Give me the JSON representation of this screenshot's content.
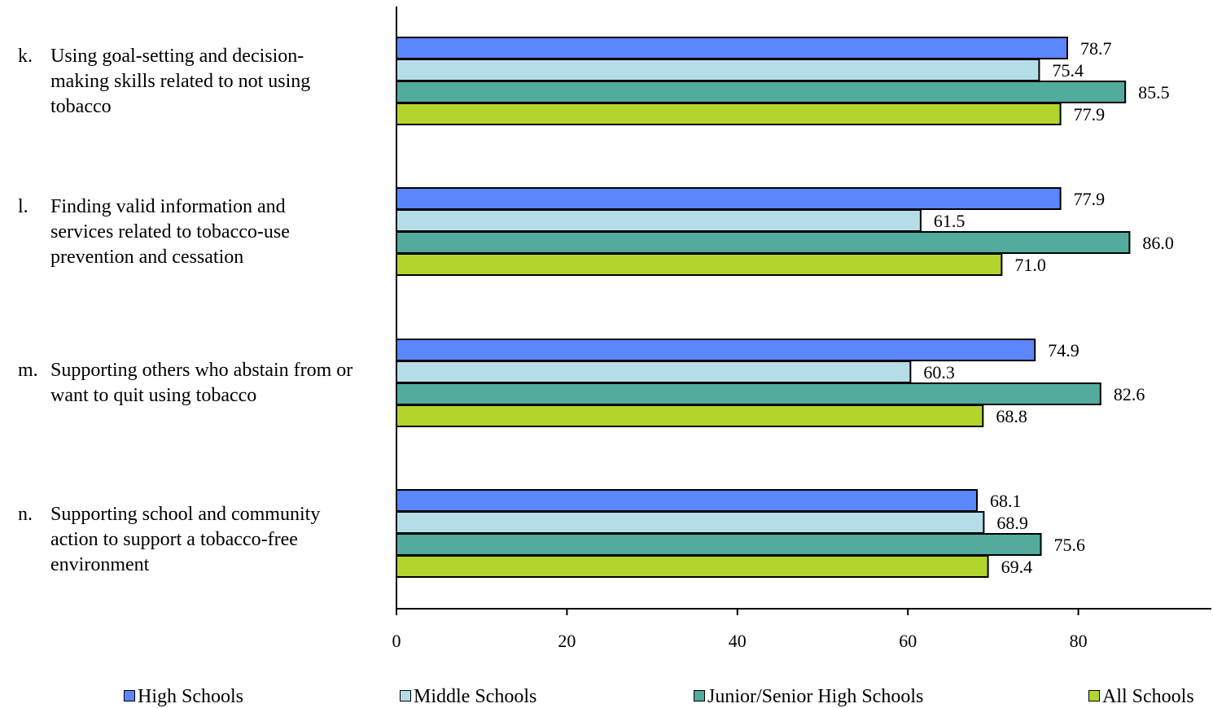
{
  "chart_data": {
    "type": "bar",
    "orientation": "horizontal",
    "categories": [
      {
        "letter": "k.",
        "label": "Using goal-setting and decision-making skills related to not using tobacco",
        "lines": [
          "Using goal-setting and decision-",
          "making skills related to not using",
          "tobacco"
        ]
      },
      {
        "letter": "l.",
        "label": "Finding valid information and services related to tobacco-use prevention and cessation",
        "lines": [
          "Finding valid information and",
          "services related to tobacco-use",
          "prevention and cessation"
        ]
      },
      {
        "letter": "m.",
        "label": "Supporting others who abstain from or want to quit using tobacco",
        "lines": [
          "Supporting others who abstain from or",
          "want to quit using tobacco"
        ]
      },
      {
        "letter": "n.",
        "label": "Supporting school and community action to support a tobacco-free environment",
        "lines": [
          "Supporting school and community",
          "action to support a tobacco-free",
          "environment"
        ]
      }
    ],
    "series": [
      {
        "name": "High Schools",
        "color": "#5b86fc",
        "values": [
          78.7,
          77.9,
          74.9,
          68.1
        ],
        "labels": [
          "78.7",
          "77.9",
          "74.9",
          "68.1"
        ]
      },
      {
        "name": "Middle Schools",
        "color": "#b5dde8",
        "values": [
          75.4,
          61.5,
          60.3,
          68.9
        ],
        "labels": [
          "75.4",
          "61.5",
          "60.3",
          "68.9"
        ]
      },
      {
        "name": "Junior/Senior High Schools",
        "color": "#52ab9c",
        "values": [
          85.5,
          86.0,
          82.6,
          75.6
        ],
        "labels": [
          "85.5",
          "86.0",
          "82.6",
          "75.6"
        ]
      },
      {
        "name": "All Schools",
        "color": "#b2d42c",
        "values": [
          77.9,
          71.0,
          68.8,
          69.4
        ],
        "labels": [
          "77.9",
          "71.0",
          "68.8",
          "69.4"
        ]
      }
    ],
    "x_ticks": [
      "0",
      "20",
      "40",
      "60",
      "80"
    ],
    "xlim": [
      0,
      96
    ],
    "grid": false,
    "legend_position": "bottom"
  }
}
